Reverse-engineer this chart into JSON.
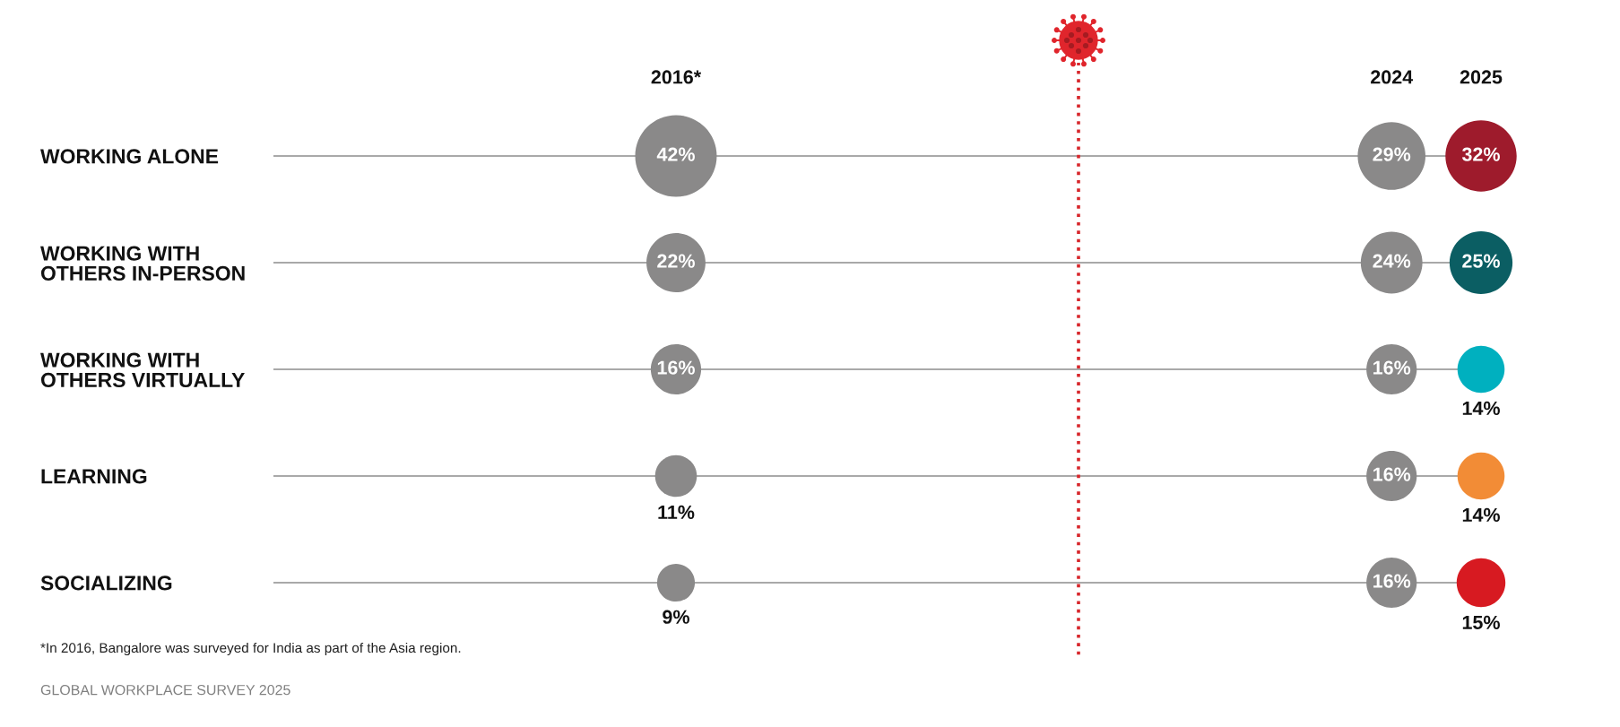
{
  "chart_data": {
    "type": "bubble",
    "orientation": "horizontal",
    "categories": [
      "WORKING ALONE",
      "WORKING WITH\nOTHERS IN-PERSON",
      "WORKING WITH\nOTHERS VIRTUALLY",
      "LEARNING",
      "SOCIALIZING"
    ],
    "xlim": [
      2011.5,
      2025
    ],
    "xticks": [
      {
        "value": 2016,
        "label": "2016*"
      },
      2024,
      2025
    ],
    "series": [
      {
        "values": [
          2016,
          2016,
          2016,
          2016,
          2016
        ],
        "sizes": [
          42,
          22,
          16,
          11,
          9
        ],
        "value_labels": [
          "42%",
          "22%",
          "16%",
          "11%",
          "9%"
        ],
        "color": "#8a8989"
      },
      {
        "values": [
          2024,
          2024,
          2024,
          2024,
          2024
        ],
        "sizes": [
          29,
          24,
          16,
          16,
          16
        ],
        "value_labels": [
          "29%",
          "24%",
          "16%",
          "16%",
          "16%"
        ],
        "color": "#8a8989"
      },
      {
        "values": [
          2025,
          2025,
          2025,
          2025,
          2025
        ],
        "sizes": [
          32,
          25,
          14,
          14,
          15
        ],
        "value_labels": [
          "32%",
          "25%",
          "14%",
          "14%",
          "15%"
        ],
        "colors": [
          "#9e1b2c",
          "#0b5e63",
          "#00b0bf",
          "#f28c36",
          "#d71a21"
        ]
      }
    ],
    "ref_lines": [
      {
        "axis": "x",
        "value": 2020.5,
        "color": "#d7262b",
        "line_style": "dotted"
      }
    ],
    "grid": "y",
    "annotations": [
      "*In 2016, Bangalore was surveyed for India as part of the Asia region.",
      "GLOBAL WORKPLACE SURVEY 2025"
    ]
  }
}
